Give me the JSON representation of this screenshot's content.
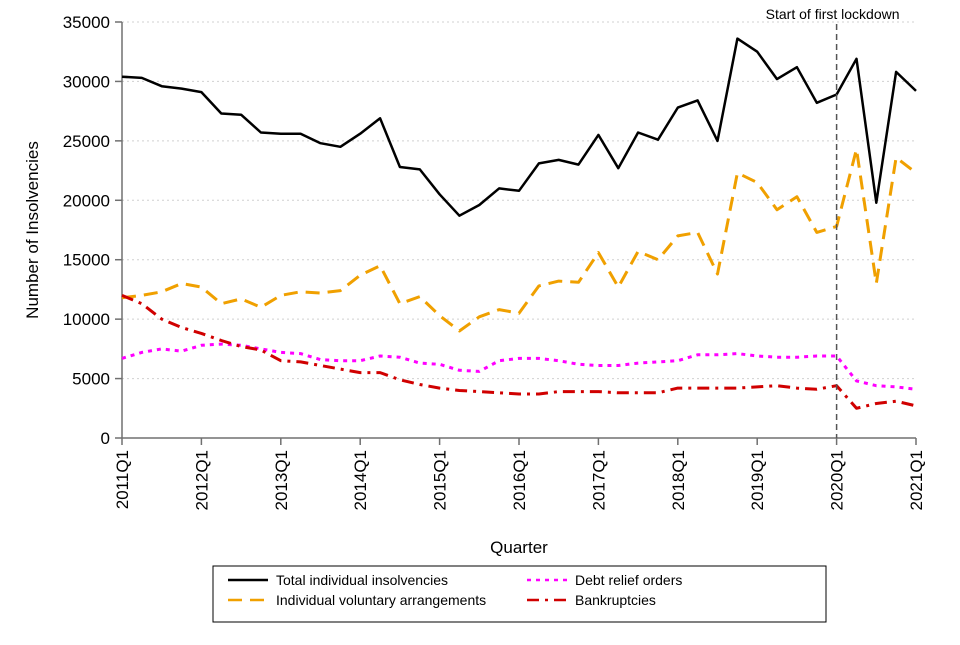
{
  "chart_data": {
    "type": "line",
    "title": "",
    "xlabel": "Quarter",
    "ylabel": "Number of Insolvencies",
    "ylim": [
      0,
      35000
    ],
    "yticks": [
      0,
      5000,
      10000,
      15000,
      20000,
      25000,
      30000,
      35000
    ],
    "xtick_labels": [
      "2011Q1",
      "2012Q1",
      "2013Q1",
      "2014Q1",
      "2015Q1",
      "2016Q1",
      "2017Q1",
      "2018Q1",
      "2019Q1",
      "2020Q1",
      "2021Q1"
    ],
    "grid": "horizontal dotted",
    "legend_placement": "bottom",
    "x_start": "2011Q1",
    "x_end": "2021Q1",
    "annotation": {
      "label": "Start of first lockdown",
      "x": "2020Q1"
    },
    "series": [
      {
        "name": "Total individual insolvencies",
        "color": "#000000",
        "dash": "solid",
        "values": [
          30400,
          30300,
          29600,
          29400,
          29100,
          27300,
          27200,
          25700,
          25600,
          25600,
          24800,
          24500,
          25600,
          26900,
          22800,
          22600,
          20500,
          18700,
          19600,
          21000,
          20800,
          23100,
          23400,
          23000,
          25500,
          22700,
          25700,
          25100,
          27800,
          28400,
          25000,
          33600,
          32500,
          30200,
          31200,
          28200,
          28900,
          31900,
          19800,
          30800,
          29200
        ]
      },
      {
        "name": "Individual voluntary arrangements",
        "color": "#f0a000",
        "dash": "dashed",
        "values": [
          11800,
          12000,
          12300,
          13000,
          12700,
          11300,
          11700,
          11000,
          12000,
          12300,
          12200,
          12400,
          13700,
          14500,
          11300,
          11900,
          10300,
          9000,
          10200,
          10800,
          10500,
          12800,
          13200,
          13100,
          15600,
          12700,
          15700,
          15000,
          17000,
          17300,
          13800,
          22300,
          21500,
          19200,
          20300,
          17300,
          17800,
          24300,
          13000,
          23600,
          22300
        ]
      },
      {
        "name": "Debt relief orders",
        "color": "#ff00ff",
        "dash": "dotted",
        "values": [
          6700,
          7200,
          7500,
          7300,
          7800,
          7900,
          7800,
          7500,
          7200,
          7100,
          6600,
          6500,
          6500,
          6900,
          6800,
          6300,
          6200,
          5700,
          5600,
          6500,
          6700,
          6700,
          6500,
          6200,
          6100,
          6100,
          6300,
          6400,
          6500,
          7000,
          7000,
          7100,
          6900,
          6800,
          6800,
          6900,
          6900,
          4800,
          4400,
          4300,
          4100
        ]
      },
      {
        "name": "Bankruptcies",
        "color": "#d00000",
        "dash": "dashdot",
        "values": [
          12000,
          11300,
          10000,
          9300,
          8800,
          8200,
          7700,
          7400,
          6500,
          6400,
          6100,
          5800,
          5500,
          5500,
          4900,
          4500,
          4200,
          4000,
          3900,
          3800,
          3700,
          3700,
          3900,
          3900,
          3900,
          3800,
          3800,
          3800,
          4200,
          4200,
          4200,
          4200,
          4300,
          4400,
          4200,
          4100,
          4400,
          2500,
          2900,
          3100,
          2700
        ]
      }
    ]
  }
}
